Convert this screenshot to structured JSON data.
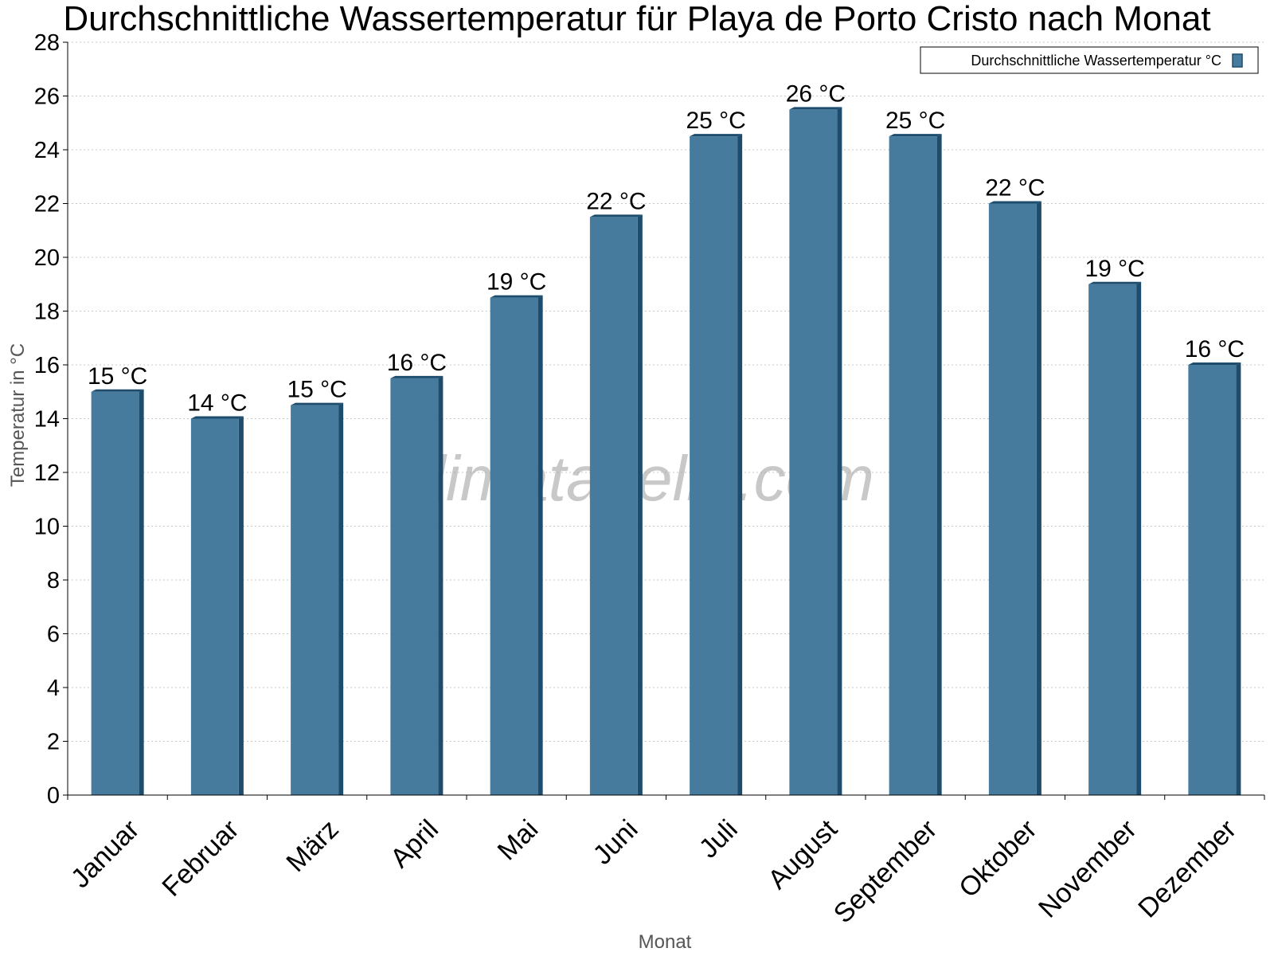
{
  "chart_data": {
    "type": "bar",
    "title": "Durchschnittliche Wassertemperatur für Playa de Porto Cristo nach Monat",
    "xlabel": "Monat",
    "ylabel": "Temperatur in °C",
    "categories": [
      "Januar",
      "Februar",
      "März",
      "April",
      "Mai",
      "Juni",
      "Juli",
      "August",
      "September",
      "Oktober",
      "November",
      "Dezember"
    ],
    "series": [
      {
        "name": "Durchschnittliche Wassertemperatur °C",
        "values": [
          15.0,
          14.0,
          14.5,
          15.5,
          18.5,
          21.5,
          24.5,
          25.5,
          24.5,
          22.0,
          19.0,
          16.0
        ],
        "labels": [
          "15 °C",
          "14 °C",
          "15 °C",
          "16 °C",
          "19 °C",
          "22 °C",
          "25 °C",
          "26 °C",
          "25 °C",
          "22 °C",
          "19 °C",
          "16 °C"
        ],
        "color": "#467b9e",
        "edge_color": "#1d4c6c"
      }
    ],
    "ylim": [
      0,
      28
    ],
    "yticks": [
      "0",
      "2",
      "4",
      "6",
      "8",
      "10",
      "12",
      "14",
      "16",
      "18",
      "20",
      "22",
      "24",
      "26",
      "28"
    ],
    "grid": true,
    "legend_position": "top-right"
  },
  "watermark": "klimatabelle.com"
}
